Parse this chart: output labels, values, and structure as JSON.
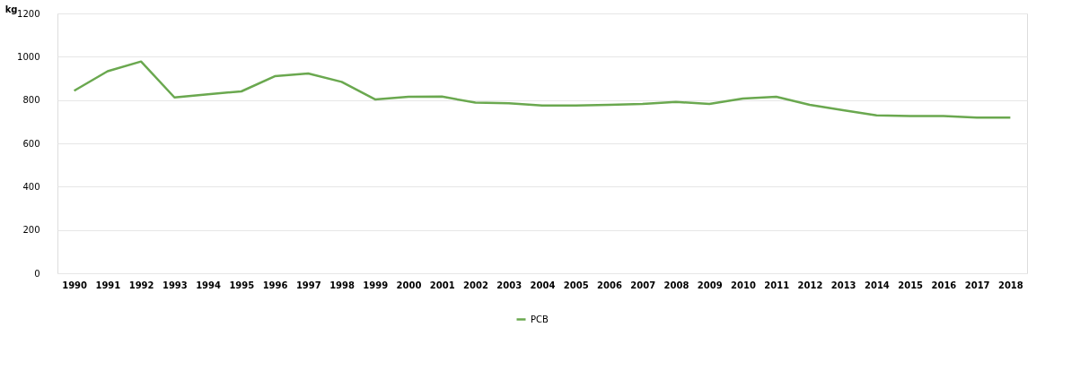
{
  "chart_data": {
    "type": "line",
    "ylabel": "kg",
    "categories": [
      "1990",
      "1991",
      "1992",
      "1993",
      "1994",
      "1995",
      "1996",
      "1997",
      "1998",
      "1999",
      "2000",
      "2001",
      "2002",
      "2003",
      "2004",
      "2005",
      "2006",
      "2007",
      "2008",
      "2009",
      "2010",
      "2011",
      "2012",
      "2013",
      "2014",
      "2015",
      "2016",
      "2017",
      "2018"
    ],
    "series": [
      {
        "name": "PCB",
        "color": "#6aa84f",
        "values": [
          843,
          933,
          978,
          812,
          827,
          840,
          910,
          923,
          884,
          803,
          815,
          816,
          788,
          785,
          775,
          775,
          778,
          782,
          791,
          782,
          807,
          815,
          778,
          753,
          729,
          726,
          726,
          719,
          719
        ]
      }
    ],
    "ylim": [
      0,
      1200
    ],
    "yticks": [
      0,
      200,
      400,
      600,
      800,
      1000,
      1200
    ],
    "grid": "y",
    "legend": "bottom",
    "marker": "none",
    "line_style": "solid"
  }
}
